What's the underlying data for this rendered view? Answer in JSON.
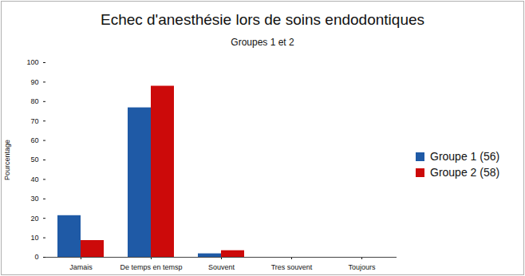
{
  "chart_data": {
    "type": "bar",
    "title": "Echec d'anesthésie lors de soins endodontiques",
    "subtitle": "Groupes 1 et 2",
    "y_label": "Pourcentage",
    "categories": [
      "Jamais",
      "De temps en temsp",
      "Souvent",
      "Tres souvent",
      "Toujours"
    ],
    "series": [
      {
        "name": "Groupe 1 (56)",
        "color": "#1f5aa6",
        "values": [
          21.4,
          76.8,
          1.8,
          0,
          0
        ]
      },
      {
        "name": "Groupe 2 (58)",
        "color": "#cc0a0a",
        "values": [
          8.6,
          87.9,
          3.4,
          0,
          0
        ]
      }
    ],
    "ylim": [
      0,
      100
    ],
    "yticks": [
      0,
      10,
      20,
      30,
      40,
      50,
      60,
      70,
      80,
      90,
      100
    ],
    "grid": false,
    "legend": "right"
  }
}
